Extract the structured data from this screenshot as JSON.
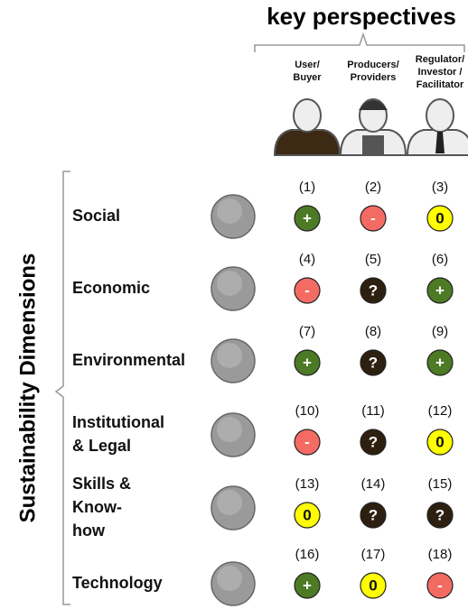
{
  "title": "key perspectives",
  "side_label": "Sustainability Dimensions",
  "perspectives": [
    {
      "lines": [
        "User/",
        "Buyer"
      ]
    },
    {
      "lines": [
        "Producers/",
        "Providers"
      ]
    },
    {
      "lines": [
        "Regulator/",
        "Investor /",
        "Facilitator"
      ]
    }
  ],
  "rows": [
    {
      "lines": [
        "Social"
      ],
      "cells": [
        {
          "number": "(1)",
          "symbol": "+"
        },
        {
          "number": "(2)",
          "symbol": "-"
        },
        {
          "number": "(3)",
          "symbol": "0"
        }
      ]
    },
    {
      "lines": [
        "Economic"
      ],
      "cells": [
        {
          "number": "(4)",
          "symbol": "-"
        },
        {
          "number": "(5)",
          "symbol": "?"
        },
        {
          "number": "(6)",
          "symbol": "+"
        }
      ]
    },
    {
      "lines": [
        "Environmental"
      ],
      "cells": [
        {
          "number": "(7)",
          "symbol": "+"
        },
        {
          "number": "(8)",
          "symbol": "?"
        },
        {
          "number": "(9)",
          "symbol": "+"
        }
      ]
    },
    {
      "lines": [
        "Institutional",
        "& Legal"
      ],
      "cells": [
        {
          "number": "(10)",
          "symbol": "-"
        },
        {
          "number": "(11)",
          "symbol": "?"
        },
        {
          "number": "(12)",
          "symbol": "0"
        }
      ]
    },
    {
      "lines": [
        "Skills &",
        "Know-",
        "how"
      ],
      "cells": [
        {
          "number": "(13)",
          "symbol": "0"
        },
        {
          "number": "(14)",
          "symbol": "?"
        },
        {
          "number": "(15)",
          "symbol": "?"
        }
      ]
    },
    {
      "lines": [
        "Technology"
      ],
      "cells": [
        {
          "number": "(16)",
          "symbol": "+"
        },
        {
          "number": "(17)",
          "symbol": "0"
        },
        {
          "number": "(18)",
          "symbol": "-"
        }
      ]
    }
  ]
}
